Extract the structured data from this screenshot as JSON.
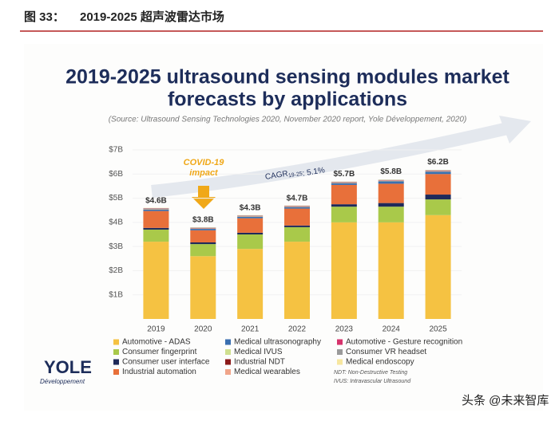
{
  "header": {
    "figure": "图 33：",
    "title": "2019-2025 超声波雷达市场"
  },
  "chart_data": {
    "type": "stacked_bar",
    "title": [
      "2019-2025 ultrasound sensing modules market",
      "forecasts by applications"
    ],
    "subtitle": "(Source: Ultrasound Sensing Technologies 2020, November 2020 report, Yole Développement, 2020)",
    "categories": [
      "2019",
      "2020",
      "2021",
      "2022",
      "2023",
      "2024",
      "2025"
    ],
    "series": [
      {
        "name": "Automotive - ADAS",
        "color": "#f5c242",
        "values": [
          3.2,
          2.6,
          2.9,
          3.2,
          4.0,
          4.0,
          4.3
        ]
      },
      {
        "name": "Consumer fingerprint",
        "color": "#a9c94a",
        "values": [
          0.5,
          0.5,
          0.6,
          0.6,
          0.65,
          0.65,
          0.65
        ]
      },
      {
        "name": "Consumer user interface",
        "color": "#1f2a5a",
        "values": [
          0.07,
          0.07,
          0.07,
          0.07,
          0.1,
          0.15,
          0.2
        ]
      },
      {
        "name": "Industrial automation",
        "color": "#e8703a",
        "values": [
          0.7,
          0.5,
          0.6,
          0.7,
          0.8,
          0.8,
          0.85
        ]
      },
      {
        "name": "Medical ultrasonography",
        "color": "#3a6fb0",
        "values": [
          0.06,
          0.06,
          0.06,
          0.06,
          0.07,
          0.1,
          0.1
        ]
      },
      {
        "name": "Medical IVUS",
        "color": "#cfe08f",
        "values": [
          0.01,
          0.01,
          0.01,
          0.01,
          0.01,
          0.01,
          0.01
        ]
      },
      {
        "name": "Industrial NDT",
        "color": "#8b1a1a",
        "values": [
          0.01,
          0.01,
          0.01,
          0.01,
          0.01,
          0.01,
          0.01
        ]
      },
      {
        "name": "Medical wearables",
        "color": "#f0a58a",
        "values": [
          0.01,
          0.01,
          0.01,
          0.01,
          0.01,
          0.01,
          0.01
        ]
      },
      {
        "name": "Automotive - Gesture recognition",
        "color": "#d6336c",
        "values": [
          0.01,
          0.01,
          0.01,
          0.01,
          0.01,
          0.01,
          0.01
        ]
      },
      {
        "name": "Consumer VR headset",
        "color": "#9a9a9a",
        "values": [
          0.02,
          0.02,
          0.02,
          0.02,
          0.02,
          0.02,
          0.02
        ]
      },
      {
        "name": "Medical endoscopy",
        "color": "#f7e7a0",
        "values": [
          0.01,
          0.01,
          0.01,
          0.01,
          0.01,
          0.01,
          0.01
        ]
      }
    ],
    "totals": {
      "values": [
        4.6,
        3.8,
        4.3,
        4.7,
        5.7,
        5.8,
        6.2
      ],
      "value_labels": [
        "$4.6B",
        "$3.8B",
        "$4.3B",
        "$4.7B",
        "$5.7B",
        "$5.8B",
        "$6.2B"
      ]
    },
    "ylim": [
      0,
      7
    ],
    "yticks": [
      {
        "value": 1,
        "label": "$1B"
      },
      {
        "value": 2,
        "label": "$2B"
      },
      {
        "value": 3,
        "label": "$3B"
      },
      {
        "value": 4,
        "label": "$4B"
      },
      {
        "value": 5,
        "label": "$5B"
      },
      {
        "value": 6,
        "label": "$6B"
      },
      {
        "value": 7,
        "label": "$7B"
      }
    ],
    "grid": true,
    "annotations": {
      "covid": [
        "COVID-19",
        "impact"
      ],
      "cagr": [
        "CAGR",
        "19-25",
        ": 5.1%"
      ]
    },
    "notes": [
      "NDT: Non-Destructive Testing",
      "IVUS: Intravascular Ultrasound"
    ]
  },
  "logo": {
    "name": "YOLE",
    "sub": "Développement"
  },
  "watermark": "头条 @未来智库"
}
